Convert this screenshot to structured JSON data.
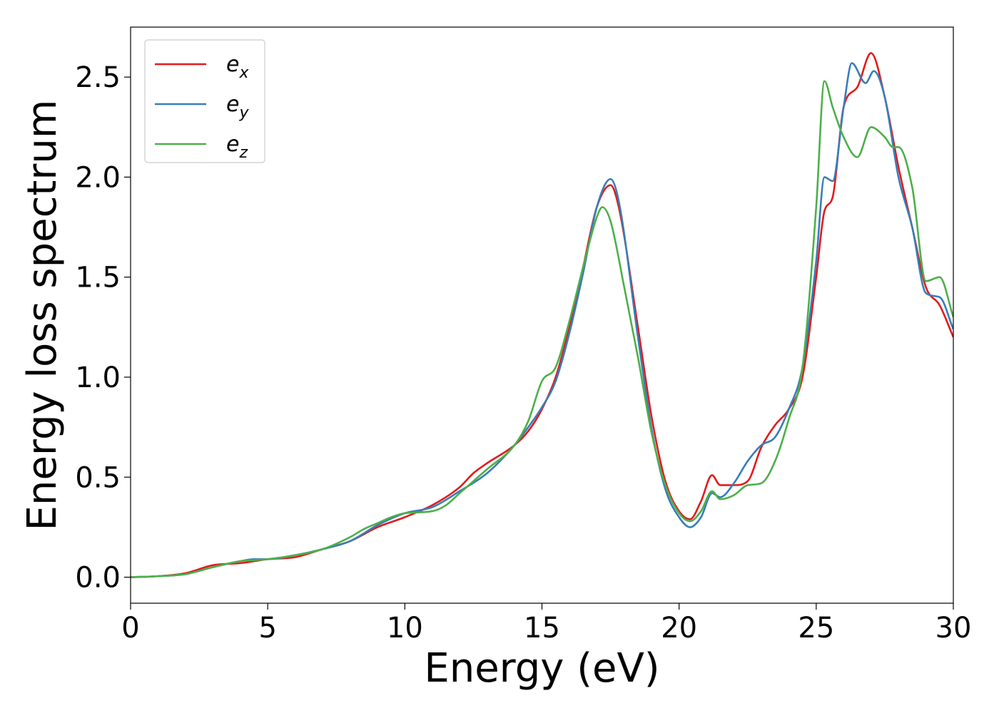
{
  "chart_data": {
    "type": "line",
    "title": "",
    "xlabel": "Energy (eV)",
    "ylabel": "Energy loss spectrum",
    "xlim": [
      0,
      30
    ],
    "ylim": [
      -0.13,
      2.75
    ],
    "xticks": [
      0,
      5,
      10,
      15,
      20,
      25,
      30
    ],
    "yticks": [
      0.0,
      0.5,
      1.0,
      1.5,
      2.0,
      2.5
    ],
    "xtick_labels": [
      "0",
      "5",
      "10",
      "15",
      "20",
      "25",
      "30"
    ],
    "ytick_labels": [
      "0.0",
      "0.5",
      "1.0",
      "1.5",
      "2.0",
      "2.5"
    ],
    "grid": false,
    "legend_position": "top-left",
    "series": [
      {
        "name": "e_x",
        "label_base": "e",
        "label_sub": "x",
        "color": "#e41a1c",
        "x": [
          0,
          1,
          2,
          3,
          4,
          5,
          6,
          7,
          8,
          9,
          10,
          11,
          12,
          12.5,
          13,
          14,
          14.5,
          15,
          15.5,
          16,
          16.5,
          17,
          17.5,
          17.8,
          18.5,
          19,
          19.5,
          20,
          20.4,
          20.8,
          21.2,
          21.5,
          22,
          22.5,
          23,
          23.5,
          24,
          24.5,
          25,
          25.3,
          25.6,
          26,
          26.5,
          27,
          27.5,
          28,
          28.5,
          29,
          29.5,
          30
        ],
        "y": [
          0,
          0.005,
          0.02,
          0.06,
          0.07,
          0.09,
          0.1,
          0.14,
          0.18,
          0.25,
          0.3,
          0.36,
          0.45,
          0.52,
          0.57,
          0.66,
          0.73,
          0.84,
          1.0,
          1.25,
          1.55,
          1.85,
          1.96,
          1.85,
          1.25,
          0.8,
          0.48,
          0.33,
          0.29,
          0.38,
          0.51,
          0.46,
          0.46,
          0.48,
          0.65,
          0.76,
          0.84,
          1.0,
          1.5,
          1.83,
          1.9,
          2.35,
          2.45,
          2.62,
          2.4,
          2.05,
          1.75,
          1.45,
          1.36,
          1.2
        ]
      },
      {
        "name": "e_y",
        "label_base": "e",
        "label_sub": "y",
        "color": "#377eb8",
        "x": [
          0,
          1,
          2,
          3,
          4,
          4.5,
          5,
          6,
          7,
          8,
          9,
          10,
          11,
          12,
          13,
          14,
          14.5,
          15,
          15.5,
          16,
          16.5,
          17,
          17.5,
          17.8,
          18.5,
          19,
          19.5,
          20,
          20.4,
          20.8,
          21.2,
          21.5,
          22,
          22.5,
          23,
          23.5,
          24,
          24.5,
          25,
          25.3,
          25.6,
          26,
          26.3,
          26.8,
          27.1,
          27.5,
          28,
          28.5,
          29,
          29.5,
          30
        ],
        "y": [
          0,
          0.005,
          0.015,
          0.05,
          0.08,
          0.09,
          0.09,
          0.11,
          0.14,
          0.18,
          0.26,
          0.32,
          0.35,
          0.43,
          0.52,
          0.66,
          0.75,
          0.85,
          0.98,
          1.22,
          1.52,
          1.85,
          1.99,
          1.88,
          1.2,
          0.74,
          0.44,
          0.3,
          0.25,
          0.3,
          0.42,
          0.4,
          0.47,
          0.58,
          0.66,
          0.7,
          0.84,
          1.05,
          1.58,
          2.0,
          1.98,
          2.35,
          2.57,
          2.47,
          2.53,
          2.4,
          2.0,
          1.75,
          1.42,
          1.4,
          1.24
        ]
      },
      {
        "name": "e_z",
        "label_base": "e",
        "label_sub": "z",
        "color": "#4daf4a",
        "x": [
          0,
          1,
          2,
          3,
          4,
          5,
          6,
          7,
          8,
          8.5,
          9,
          9.5,
          10,
          11,
          11.5,
          12,
          13,
          14,
          14.5,
          15,
          15.5,
          16,
          16.5,
          17,
          17.2,
          17.5,
          18,
          18.5,
          19,
          19.5,
          20,
          20.4,
          20.8,
          21.2,
          21.5,
          22,
          22.5,
          23,
          23.5,
          24,
          24.5,
          25,
          25.3,
          25.6,
          26,
          26.5,
          27,
          27.5,
          27.8,
          28,
          28.5,
          29,
          29.5,
          30
        ],
        "y": [
          0,
          0.005,
          0.015,
          0.05,
          0.08,
          0.09,
          0.11,
          0.14,
          0.2,
          0.24,
          0.27,
          0.3,
          0.32,
          0.33,
          0.36,
          0.42,
          0.54,
          0.66,
          0.78,
          0.98,
          1.05,
          1.28,
          1.55,
          1.8,
          1.85,
          1.78,
          1.45,
          1.1,
          0.72,
          0.46,
          0.32,
          0.28,
          0.33,
          0.43,
          0.39,
          0.41,
          0.46,
          0.47,
          0.58,
          0.79,
          1.05,
          1.85,
          2.48,
          2.35,
          2.2,
          2.1,
          2.25,
          2.2,
          2.15,
          2.15,
          1.95,
          1.48,
          1.5,
          1.3
        ]
      }
    ]
  }
}
